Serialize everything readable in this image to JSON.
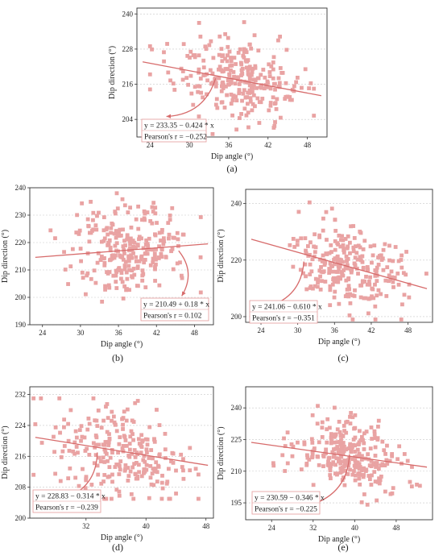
{
  "chart_data": [
    {
      "type": "scatter",
      "panel": "(a)",
      "xlabel": "Dip angle (°)",
      "ylabel": "Dip direction (°)",
      "xlim": [
        22,
        51
      ],
      "ylim": [
        198,
        242
      ],
      "xticks": [
        24,
        30,
        36,
        42,
        48
      ],
      "yticks": [
        204,
        216,
        228,
        240
      ],
      "xtick_labels": [
        "24",
        "30",
        "36",
        "42",
        "48"
      ],
      "ytick_labels": [
        "204",
        "216",
        "228",
        "240"
      ],
      "fit": {
        "intercept": 233.35,
        "slope": -0.424
      },
      "equation": "y = 233.35 − 0.424 * x",
      "pearson": "Pearson's r = −0.252",
      "arrow": {
        "from": [
          34,
          218
        ],
        "to": [
          26.5,
          205
        ]
      },
      "n_points": 280,
      "cloud": {
        "xmean": 37.5,
        "xsd": 4.8,
        "ymean": 217.8,
        "ysd": 7.2,
        "xmin": 24,
        "xmax": 49,
        "ymin": 199,
        "ymax": 241
      }
    },
    {
      "type": "scatter",
      "panel": "(b)",
      "xlabel": "Dip angle (°)",
      "ylabel": "Dip direction (°)",
      "xlim": [
        22,
        51
      ],
      "ylim": [
        190,
        240
      ],
      "xticks": [
        24,
        30,
        36,
        42,
        48
      ],
      "yticks": [
        190,
        200,
        210,
        220,
        230,
        240
      ],
      "xtick_labels": [
        "24",
        "30",
        "36",
        "42",
        "48"
      ],
      "ytick_labels": [
        "190",
        "200",
        "210",
        "220",
        "230",
        "240"
      ],
      "fit": {
        "intercept": 210.49,
        "slope": 0.18
      },
      "equation": "y = 210.49 + 0.18 * x",
      "pearson": "Pearson's r = 0.102",
      "arrow": {
        "from": [
          45.5,
          217
        ],
        "to": [
          46,
          200.5
        ]
      },
      "n_points": 270,
      "cloud": {
        "xmean": 37.5,
        "xsd": 4.8,
        "ymean": 217.3,
        "ysd": 8.5,
        "xmin": 24,
        "xmax": 49,
        "ymin": 192,
        "ymax": 238
      }
    },
    {
      "type": "scatter",
      "panel": "(c)",
      "xlabel": "Dip angle (°)",
      "ylabel": "Dip direction (°)",
      "xlim": [
        21.5,
        52
      ],
      "ylim": [
        198,
        245
      ],
      "xticks": [
        24,
        30,
        36,
        42,
        48
      ],
      "yticks": [
        200,
        220,
        240
      ],
      "xtick_labels": [
        "24",
        "30",
        "36",
        "42",
        "48"
      ],
      "ytick_labels": [
        "200",
        "220",
        "240"
      ],
      "fit": {
        "intercept": 241.06,
        "slope": -0.61
      },
      "equation": "y = 241.06 − 0.610 * x",
      "pearson": "Pearson's r = −0.351",
      "arrow": {
        "from": [
          31,
          219.5
        ],
        "to": [
          25,
          203.5
        ]
      },
      "n_points": 270,
      "cloud": {
        "xmean": 38,
        "xsd": 4.5,
        "ymean": 218,
        "ysd": 7,
        "xmin": 23,
        "xmax": 51,
        "ymin": 199,
        "ymax": 244
      }
    },
    {
      "type": "scatter",
      "panel": "(d)",
      "xlabel": "Dip angle (°)",
      "ylabel": "Dip direction (°)",
      "xlim": [
        24.5,
        49
      ],
      "ylim": [
        200,
        234
      ],
      "xticks": [
        32,
        40,
        48
      ],
      "yticks": [
        200,
        208,
        216,
        224,
        232
      ],
      "xtick_labels": [
        "32",
        "40",
        "48"
      ],
      "ytick_labels": [
        "200",
        "208",
        "216",
        "224",
        "232"
      ],
      "fit": {
        "intercept": 228.83,
        "slope": -0.314
      },
      "equation": "y = 228.83 − 0.314 * x",
      "pearson": "Pearson's r = −0.239",
      "arrow": {
        "from": [
          33.5,
          217
        ],
        "to": [
          29,
          205
        ]
      },
      "n_points": 250,
      "cloud": {
        "xmean": 37,
        "xsd": 4.5,
        "ymean": 217,
        "ysd": 6.5,
        "xmin": 25,
        "xmax": 47,
        "ymin": 205,
        "ymax": 231
      }
    },
    {
      "type": "scatter",
      "panel": "(e)",
      "xlabel": "Dip angle (°)",
      "ylabel": "Dip direction (°)",
      "xlim": [
        19,
        55
      ],
      "ylim": [
        187,
        250
      ],
      "xticks": [
        24,
        32,
        40,
        48
      ],
      "yticks": [
        195,
        210,
        225,
        240
      ],
      "xtick_labels": [
        "24",
        "32",
        "40",
        "48"
      ],
      "ytick_labels": [
        "195",
        "210",
        "225",
        "240"
      ],
      "fit": {
        "intercept": 230.59,
        "slope": -0.346
      },
      "equation": "y = 230.59 − 0.346 * x",
      "pearson": "Pearson's r = −0.225",
      "arrow": {
        "from": [
          39,
          218
        ],
        "to": [
          31.5,
          194
        ]
      },
      "n_points": 280,
      "cloud": {
        "xmean": 39,
        "xsd": 5,
        "ymean": 217,
        "ysd": 8,
        "xmin": 21,
        "xmax": 53,
        "ymin": 194,
        "ymax": 247
      }
    }
  ]
}
